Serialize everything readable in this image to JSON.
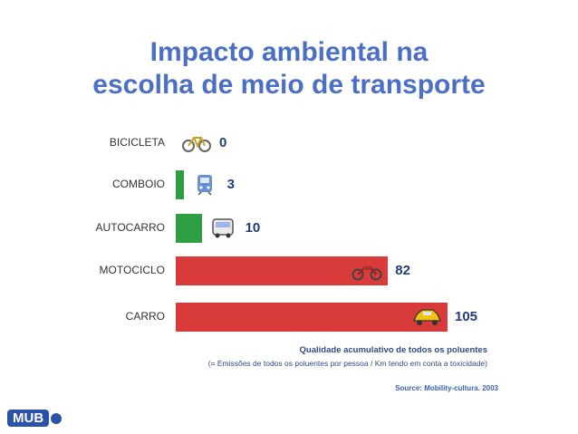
{
  "title_line1": "Impacto ambiental na",
  "title_line2": "escolha de meio de transporte",
  "chart_data": {
    "type": "bar",
    "orientation": "horizontal",
    "categories": [
      "BICICLETA",
      "COMBOIO",
      "AUTOCARRO",
      "MOTOCICLO",
      "CARRO"
    ],
    "values": [
      0,
      3,
      10,
      82,
      105
    ],
    "value_labels": [
      "0",
      "3",
      "10",
      "82",
      "105"
    ],
    "icons": [
      "bicycle-icon",
      "train-icon",
      "bus-icon",
      "motorcycle-icon",
      "car-icon"
    ],
    "bar_colors": [
      "#2ea043",
      "#2ea043",
      "#2ea043",
      "#d93a3a",
      "#d93a3a"
    ],
    "xlim": [
      0,
      105
    ],
    "xlabel": "Qualidade acumulativo de todos os poluentes",
    "subtitle": "(= Emissões de todos os poluentes  por pessoa / Km tendo em conta a toxicidade)",
    "source": "Source: Mobility-cultura. 2003"
  },
  "logo_text": "MUB"
}
